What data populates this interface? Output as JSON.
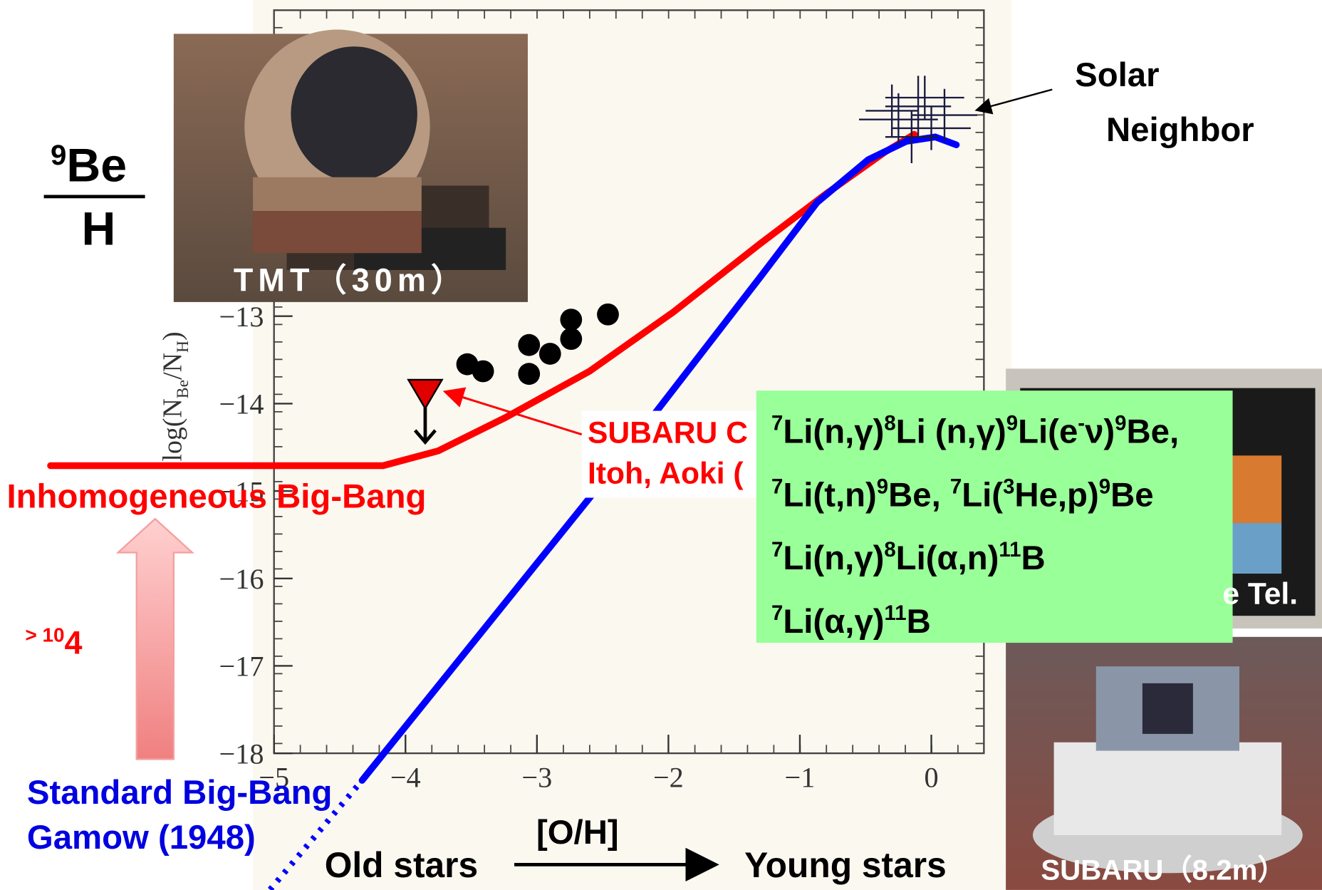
{
  "chart_data": {
    "type": "line",
    "y_label": [
      "log(N",
      "Be",
      "/N",
      "H",
      ")"
    ],
    "x_label": "[O/H]",
    "xlim": [
      -5,
      0.4
    ],
    "ylim": [
      -18,
      -9.5
    ],
    "xticks": [
      {
        "value": -5,
        "label": "−5"
      },
      {
        "value": -4,
        "label": "−4"
      },
      {
        "value": -3,
        "label": "−3"
      },
      {
        "value": -2,
        "label": "−2"
      },
      {
        "value": -1,
        "label": "−1"
      },
      0
    ],
    "yticks": [
      {
        "value": -13,
        "label": "−13"
      },
      {
        "value": -14,
        "label": "−14"
      },
      {
        "value": -15,
        "label": "−15"
      },
      {
        "value": -16,
        "label": "−16"
      },
      {
        "value": -17,
        "label": "−17"
      },
      {
        "value": -18,
        "label": "−18"
      }
    ],
    "series": [
      {
        "name": "Inhomogeneous Big-Bang",
        "type": "line",
        "color": "#ff0000",
        "x": [
          -6.7,
          -4.17,
          -3.75,
          -3.24,
          -2.6,
          -1.96,
          -1.31,
          -0.8,
          -0.35,
          -0.13
        ],
        "values": [
          -14.71,
          -14.71,
          -14.54,
          -14.16,
          -13.63,
          -12.95,
          -12.18,
          -11.6,
          -11.12,
          -10.92
        ]
      },
      {
        "name": "Standard Big-Bang",
        "type": "line",
        "color": "#0000ff",
        "x": [
          -4.33,
          -2.6,
          -1.31,
          -0.87,
          -0.48,
          -0.19,
          0.03,
          0.19
        ],
        "values": [
          -18.31,
          -15.08,
          -12.57,
          -11.7,
          -11.21,
          -11.0,
          -10.95,
          -11.04
        ]
      },
      {
        "type": "line",
        "color": "#0000ff",
        "dash": "dotted",
        "x": [
          -5.03,
          -4.33
        ],
        "values": [
          -19.56,
          -18.31
        ]
      },
      {
        "type": "scatter",
        "color": "#000000",
        "x": [
          -3.53,
          -3.41,
          -3.06,
          -2.9,
          -3.06,
          -2.74,
          -2.74,
          -2.46
        ],
        "values": [
          -13.55,
          -13.63,
          -13.33,
          -13.43,
          -13.66,
          -13.04,
          -13.26,
          -12.98
        ]
      },
      {
        "type": "upper_limit",
        "color": "#e00000",
        "x": [
          -3.85
        ],
        "values": [
          -13.92
        ]
      },
      {
        "type": "error_cross",
        "color": "#1a1a40",
        "x": [
          -0.25,
          -0.1,
          0.0,
          -0.15,
          0.1,
          -0.05,
          -0.3
        ],
        "values": [
          -10.75,
          -10.6,
          -10.85,
          -10.95,
          -10.7,
          -10.5,
          -10.65
        ],
        "xerr": [
          0.3,
          0.25,
          0.3,
          0.2,
          0.25,
          0.3,
          0.2
        ],
        "yerr": [
          0.3,
          0.35,
          0.25,
          0.3,
          0.3,
          0.25,
          0.3
        ]
      }
    ],
    "annotations": {
      "ratio": {
        "mass": "9",
        "numerator": "Be",
        "denominator": "H"
      },
      "solar": [
        "Solar",
        "Neighbor"
      ],
      "subaru_obs": [
        "SUBARU C",
        "Itoh, Aoki ("
      ],
      "factor": [
        "> 10",
        "4"
      ],
      "gamow": "Gamow (1948)",
      "old": "Old stars",
      "young": "Young stars",
      "reactions": [
        [
          "7",
          "Li(n,γ)",
          "8",
          "Li (n,γ)",
          "9",
          "Li(e",
          "-",
          "ν)",
          "9",
          "Be,"
        ],
        [
          "7",
          "Li(t,n)",
          "9",
          "Be,  ",
          "7",
          "Li(",
          "3",
          "He,p)",
          "9",
          "Be"
        ],
        [
          "7",
          "Li(n,γ)",
          "8",
          "Li(α,n)",
          "11",
          "B"
        ],
        [
          "7",
          "Li(α,γ)",
          "11",
          "B"
        ]
      ],
      "photos": [
        "TMT（30m）",
        "e Tel.",
        "SUBARU（8.2m）"
      ]
    }
  }
}
